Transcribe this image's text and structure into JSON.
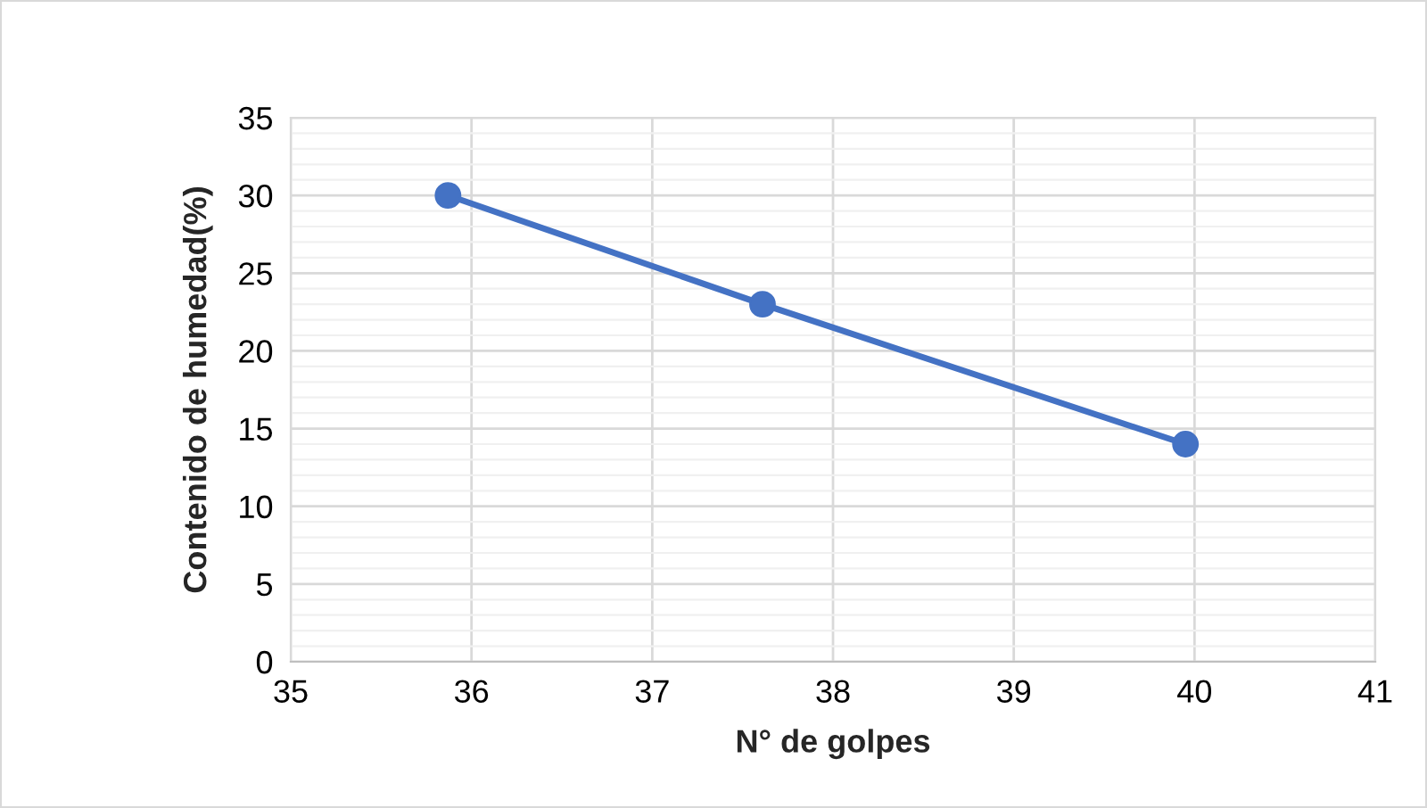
{
  "chart_data": {
    "type": "line",
    "xlabel": "N° de golpes",
    "ylabel": "Contenido de humedad(%)",
    "x": [
      35.87,
      37.61,
      39.95
    ],
    "series": [
      {
        "color": "#4472c4",
        "values": [
          30.0,
          23.0,
          14.0
        ]
      }
    ],
    "xlim": [
      35,
      41
    ],
    "xticks": [
      35,
      36,
      37,
      38,
      39,
      40,
      41
    ],
    "ylim": [
      0,
      35
    ],
    "yticks": [
      0,
      5,
      10,
      15,
      20,
      25,
      30,
      35
    ],
    "grid": true,
    "marker": "circle",
    "line_style": "solid"
  }
}
